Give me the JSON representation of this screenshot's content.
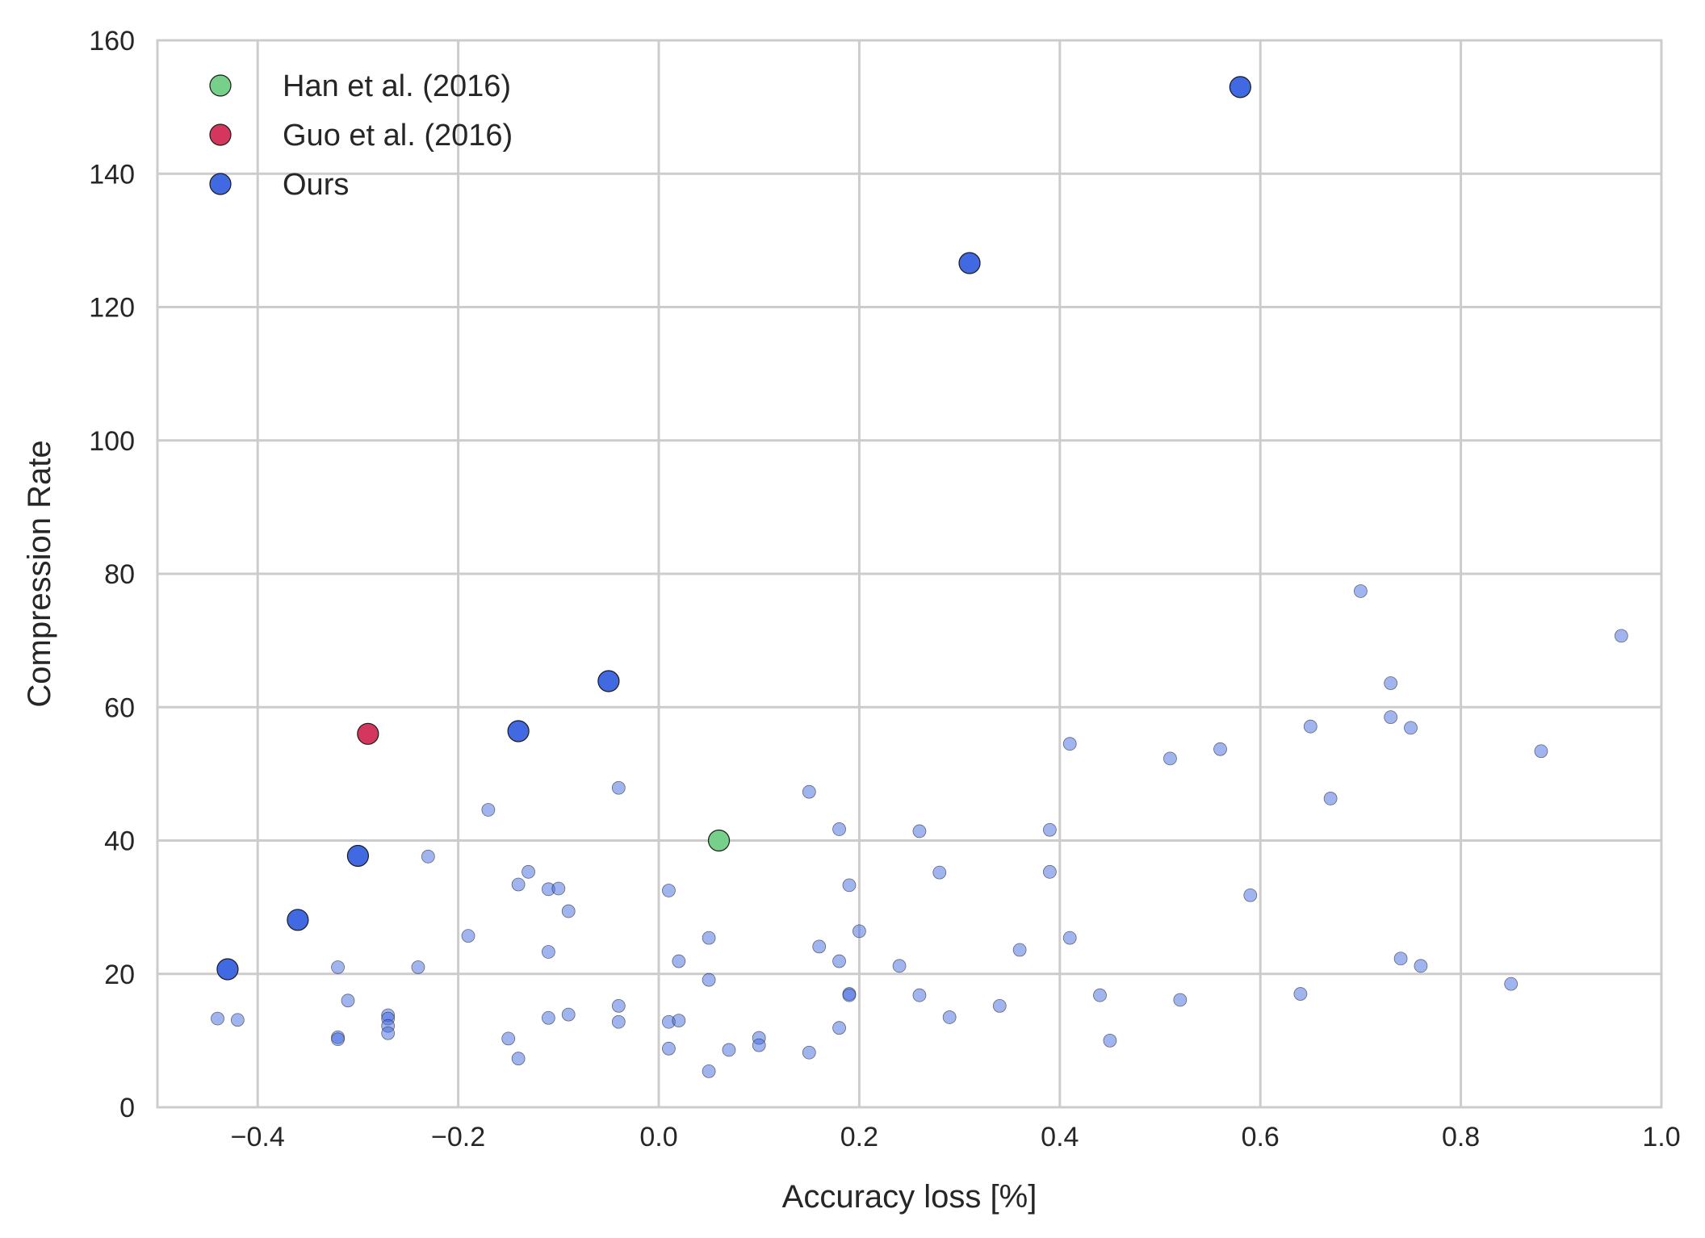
{
  "chart_data": {
    "type": "scatter",
    "title": "",
    "xlabel": "Accuracy loss [%]",
    "ylabel": "Compression Rate",
    "xlim": [
      -0.5,
      1.0
    ],
    "ylim": [
      0,
      160
    ],
    "xticks": [
      -0.4,
      -0.2,
      0.0,
      0.2,
      0.4,
      0.6,
      0.8,
      1.0
    ],
    "xtick_labels": [
      "−0.4",
      "−0.2",
      "0.0",
      "0.2",
      "0.4",
      "0.6",
      "0.8",
      "1.0"
    ],
    "yticks": [
      0,
      20,
      40,
      60,
      80,
      100,
      120,
      140,
      160
    ],
    "ytick_labels": [
      "0",
      "20",
      "40",
      "60",
      "80",
      "100",
      "120",
      "140",
      "160"
    ],
    "grid": true,
    "legend_position": "top-left",
    "series": [
      {
        "name": "Han et al. (2016)",
        "color": "#77d08a",
        "points": [
          [
            0.06,
            40
          ]
        ]
      },
      {
        "name": "Guo et al. (2016)",
        "color": "#d4365d",
        "points": [
          [
            -0.29,
            56
          ]
        ]
      },
      {
        "name": "Ours",
        "color": "#4169e1",
        "points": [
          [
            -0.43,
            20.7
          ],
          [
            -0.36,
            28.1
          ],
          [
            -0.3,
            37.7
          ],
          [
            -0.14,
            56.4
          ],
          [
            -0.05,
            63.9
          ],
          [
            0.31,
            126.6
          ],
          [
            0.58,
            153
          ]
        ]
      },
      {
        "name": "",
        "color": "#4169e1",
        "alpha": 0.5,
        "points": [
          [
            -0.44,
            13.3
          ],
          [
            -0.42,
            13.1
          ],
          [
            -0.32,
            21
          ],
          [
            -0.32,
            10.5
          ],
          [
            -0.32,
            10.2
          ],
          [
            -0.31,
            16
          ],
          [
            -0.27,
            13.8
          ],
          [
            -0.27,
            13.3
          ],
          [
            -0.27,
            12.2
          ],
          [
            -0.27,
            11.1
          ],
          [
            -0.24,
            21
          ],
          [
            -0.23,
            37.6
          ],
          [
            -0.19,
            25.7
          ],
          [
            -0.17,
            44.6
          ],
          [
            -0.15,
            10.3
          ],
          [
            -0.14,
            33.4
          ],
          [
            -0.14,
            7.3
          ],
          [
            -0.13,
            35.3
          ],
          [
            -0.11,
            32.7
          ],
          [
            -0.11,
            23.3
          ],
          [
            -0.11,
            13.4
          ],
          [
            -0.1,
            32.8
          ],
          [
            -0.09,
            29.4
          ],
          [
            -0.09,
            13.9
          ],
          [
            -0.04,
            47.9
          ],
          [
            -0.04,
            15.2
          ],
          [
            -0.04,
            12.8
          ],
          [
            0.01,
            32.5
          ],
          [
            0.01,
            12.8
          ],
          [
            0.01,
            8.8
          ],
          [
            0.02,
            21.9
          ],
          [
            0.02,
            13
          ],
          [
            0.05,
            25.4
          ],
          [
            0.05,
            19.1
          ],
          [
            0.05,
            5.4
          ],
          [
            0.07,
            8.6
          ],
          [
            0.1,
            10.4
          ],
          [
            0.1,
            9.3
          ],
          [
            0.15,
            47.3
          ],
          [
            0.15,
            8.2
          ],
          [
            0.16,
            24.1
          ],
          [
            0.18,
            41.7
          ],
          [
            0.18,
            21.9
          ],
          [
            0.18,
            11.9
          ],
          [
            0.19,
            33.3
          ],
          [
            0.19,
            17
          ],
          [
            0.19,
            16.8
          ],
          [
            0.2,
            26.4
          ],
          [
            0.24,
            21.2
          ],
          [
            0.26,
            41.4
          ],
          [
            0.26,
            16.8
          ],
          [
            0.28,
            35.2
          ],
          [
            0.29,
            13.5
          ],
          [
            0.34,
            15.2
          ],
          [
            0.36,
            23.6
          ],
          [
            0.39,
            41.6
          ],
          [
            0.39,
            35.3
          ],
          [
            0.41,
            54.5
          ],
          [
            0.41,
            25.4
          ],
          [
            0.44,
            16.8
          ],
          [
            0.45,
            10
          ],
          [
            0.51,
            52.3
          ],
          [
            0.52,
            16.1
          ],
          [
            0.56,
            53.7
          ],
          [
            0.59,
            31.8
          ],
          [
            0.64,
            17
          ],
          [
            0.65,
            57.1
          ],
          [
            0.67,
            46.3
          ],
          [
            0.7,
            77.4
          ],
          [
            0.73,
            63.6
          ],
          [
            0.73,
            58.5
          ],
          [
            0.74,
            22.3
          ],
          [
            0.75,
            56.9
          ],
          [
            0.76,
            21.2
          ],
          [
            0.85,
            18.5
          ],
          [
            0.88,
            53.4
          ],
          [
            0.96,
            70.7
          ]
        ]
      }
    ]
  }
}
